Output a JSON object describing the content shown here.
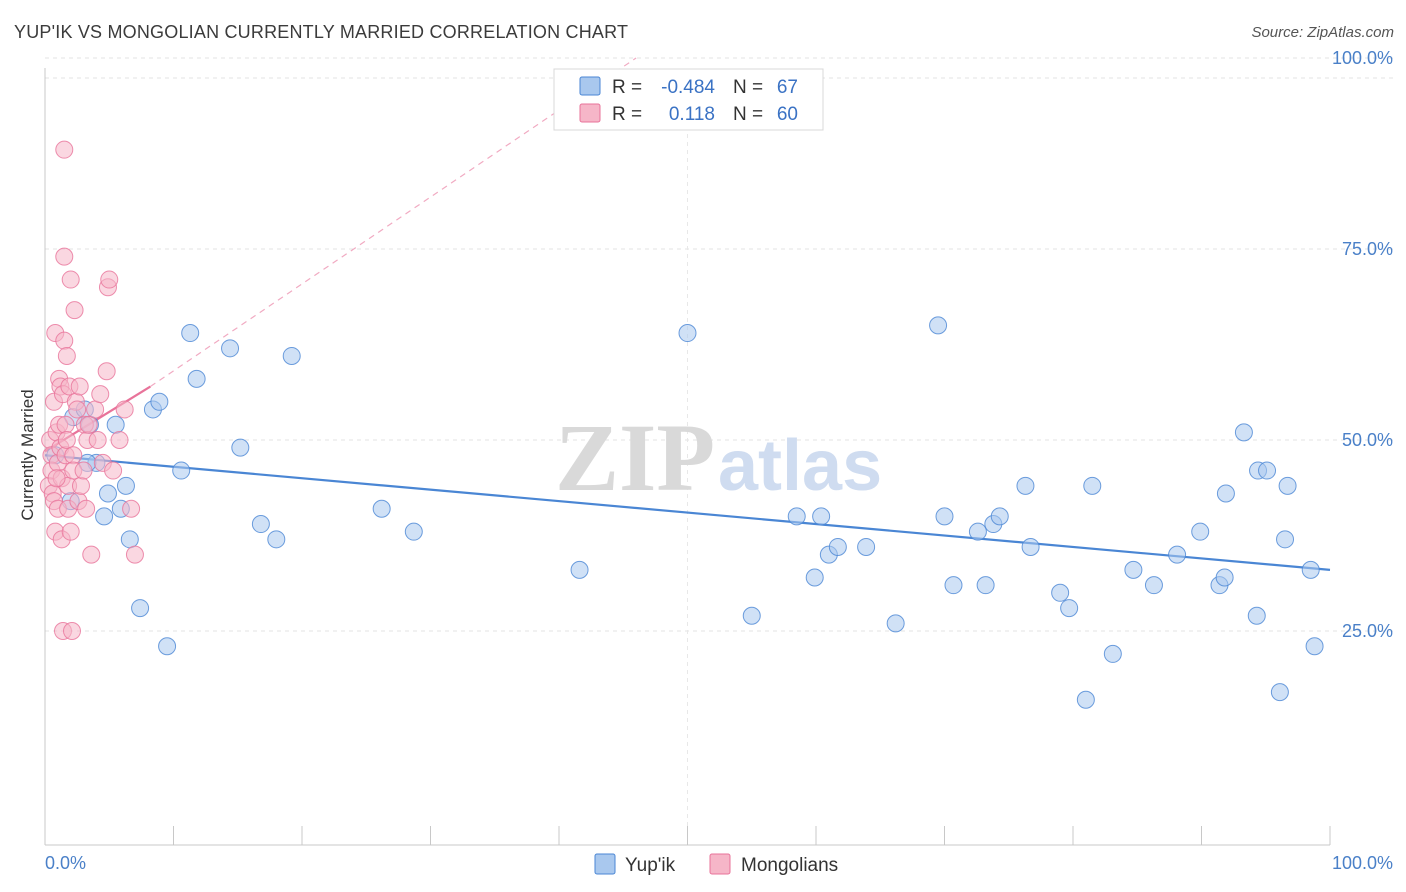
{
  "header": {
    "title": "YUP'IK VS MONGOLIAN CURRENTLY MARRIED CORRELATION CHART",
    "source": "Source: ZipAtlas.com"
  },
  "watermark": {
    "zip": "ZIP",
    "atlas": "atlas"
  },
  "legend": {
    "rows": [
      {
        "r_label": "R =",
        "r_value": "-0.484",
        "n_label": "N =",
        "n_value": "67",
        "color": "#a9c8ee"
      },
      {
        "r_label": "R =",
        "r_value": "0.118",
        "n_label": "N =",
        "n_value": "60",
        "color": "#f6b6c8"
      }
    ]
  },
  "bottom_legend": {
    "items": [
      {
        "label": "Yup'ik",
        "color": "#a9c8ee"
      },
      {
        "label": "Mongolians",
        "color": "#f6b6c8"
      }
    ]
  },
  "chart_data": {
    "type": "scatter",
    "title": "YUP'IK VS MONGOLIAN CURRENTLY MARRIED CORRELATION CHART",
    "xlabel": "",
    "ylabel": "Currently Married",
    "xlim": [
      0,
      100
    ],
    "ylim": [
      0,
      105
    ],
    "x_tick_labels": [
      "0.0%",
      "100.0%"
    ],
    "y_ticks": [
      25,
      50,
      75,
      100
    ],
    "y_tick_labels": [
      "25.0%",
      "50.0%",
      "75.0%",
      "100.0%"
    ],
    "grid": true,
    "legend_position": "top-center",
    "series": [
      {
        "name": "Yup'ik",
        "color": "#4a86d4",
        "fill": "#a9c8ee",
        "trend": {
          "x": [
            0,
            100
          ],
          "y": [
            48,
            33
          ]
        },
        "points": [
          [
            0.8,
            48
          ],
          [
            2.2,
            53
          ],
          [
            3.1,
            54
          ],
          [
            3.5,
            52
          ],
          [
            4.0,
            47
          ],
          [
            4.6,
            40
          ],
          [
            4.9,
            43
          ],
          [
            5.5,
            52
          ],
          [
            5.9,
            41
          ],
          [
            6.3,
            44
          ],
          [
            6.6,
            37
          ],
          [
            7.4,
            28
          ],
          [
            8.4,
            54
          ],
          [
            8.9,
            55
          ],
          [
            9.5,
            23
          ],
          [
            10.6,
            46
          ],
          [
            11.3,
            64
          ],
          [
            11.8,
            58
          ],
          [
            14.4,
            62
          ],
          [
            15.2,
            49
          ],
          [
            16.8,
            39
          ],
          [
            18.0,
            37
          ],
          [
            19.2,
            61
          ],
          [
            26.2,
            41
          ],
          [
            28.7,
            38
          ],
          [
            41.6,
            33
          ],
          [
            50.0,
            64
          ],
          [
            55.0,
            27
          ],
          [
            58.5,
            40
          ],
          [
            59.9,
            32
          ],
          [
            60.4,
            40
          ],
          [
            61.0,
            35
          ],
          [
            61.7,
            36
          ],
          [
            63.9,
            36
          ],
          [
            66.2,
            26
          ],
          [
            69.5,
            65
          ],
          [
            70.0,
            40
          ],
          [
            70.7,
            31
          ],
          [
            72.6,
            38
          ],
          [
            73.2,
            31
          ],
          [
            73.8,
            39
          ],
          [
            74.3,
            40
          ],
          [
            76.3,
            44
          ],
          [
            76.7,
            36
          ],
          [
            79.0,
            30
          ],
          [
            79.7,
            28
          ],
          [
            81.0,
            16
          ],
          [
            81.5,
            44
          ],
          [
            83.1,
            22
          ],
          [
            84.7,
            33
          ],
          [
            86.3,
            31
          ],
          [
            88.1,
            35
          ],
          [
            89.9,
            38
          ],
          [
            91.4,
            31
          ],
          [
            91.8,
            32
          ],
          [
            91.9,
            43
          ],
          [
            93.3,
            51
          ],
          [
            94.3,
            27
          ],
          [
            94.4,
            46
          ],
          [
            95.1,
            46
          ],
          [
            96.1,
            17
          ],
          [
            96.5,
            37
          ],
          [
            96.7,
            44
          ],
          [
            98.5,
            33
          ],
          [
            98.8,
            23
          ],
          [
            2.0,
            42
          ],
          [
            3.3,
            47
          ]
        ]
      },
      {
        "name": "Mongolians",
        "color": "#e8739a",
        "fill": "#f6b6c8",
        "trend": {
          "x": [
            0,
            8.2
          ],
          "y": [
            48.5,
            57
          ]
        },
        "trend_extended": {
          "x": [
            8.2,
            46
          ],
          "y": [
            57,
            100
          ]
        },
        "points": [
          [
            0.3,
            44
          ],
          [
            0.4,
            50
          ],
          [
            0.5,
            48
          ],
          [
            0.5,
            46
          ],
          [
            0.6,
            43
          ],
          [
            0.7,
            42
          ],
          [
            0.7,
            55
          ],
          [
            0.8,
            38
          ],
          [
            0.8,
            64
          ],
          [
            0.9,
            51
          ],
          [
            1.0,
            47
          ],
          [
            1.0,
            41
          ],
          [
            1.1,
            52
          ],
          [
            1.1,
            58
          ],
          [
            1.2,
            57
          ],
          [
            1.2,
            49
          ],
          [
            1.3,
            45
          ],
          [
            1.3,
            37
          ],
          [
            1.4,
            56
          ],
          [
            1.4,
            25
          ],
          [
            1.5,
            63
          ],
          [
            1.5,
            74
          ],
          [
            1.5,
            88
          ],
          [
            1.6,
            48
          ],
          [
            1.6,
            52
          ],
          [
            1.7,
            61
          ],
          [
            1.7,
            50
          ],
          [
            1.8,
            44
          ],
          [
            1.8,
            41
          ],
          [
            1.9,
            57
          ],
          [
            2.0,
            38
          ],
          [
            2.0,
            71
          ],
          [
            2.1,
            25
          ],
          [
            2.2,
            48
          ],
          [
            2.2,
            46
          ],
          [
            2.3,
            67
          ],
          [
            2.4,
            55
          ],
          [
            2.5,
            54
          ],
          [
            2.6,
            42
          ],
          [
            2.7,
            57
          ],
          [
            2.8,
            44
          ],
          [
            3.0,
            46
          ],
          [
            3.1,
            52
          ],
          [
            3.2,
            41
          ],
          [
            3.3,
            50
          ],
          [
            3.4,
            52
          ],
          [
            3.6,
            35
          ],
          [
            3.9,
            54
          ],
          [
            4.1,
            50
          ],
          [
            4.3,
            56
          ],
          [
            4.5,
            47
          ],
          [
            4.8,
            59
          ],
          [
            4.9,
            70
          ],
          [
            5.0,
            71
          ],
          [
            5.3,
            46
          ],
          [
            5.8,
            50
          ],
          [
            6.2,
            54
          ],
          [
            6.7,
            41
          ],
          [
            7.0,
            35
          ],
          [
            0.9,
            45
          ]
        ]
      }
    ]
  }
}
